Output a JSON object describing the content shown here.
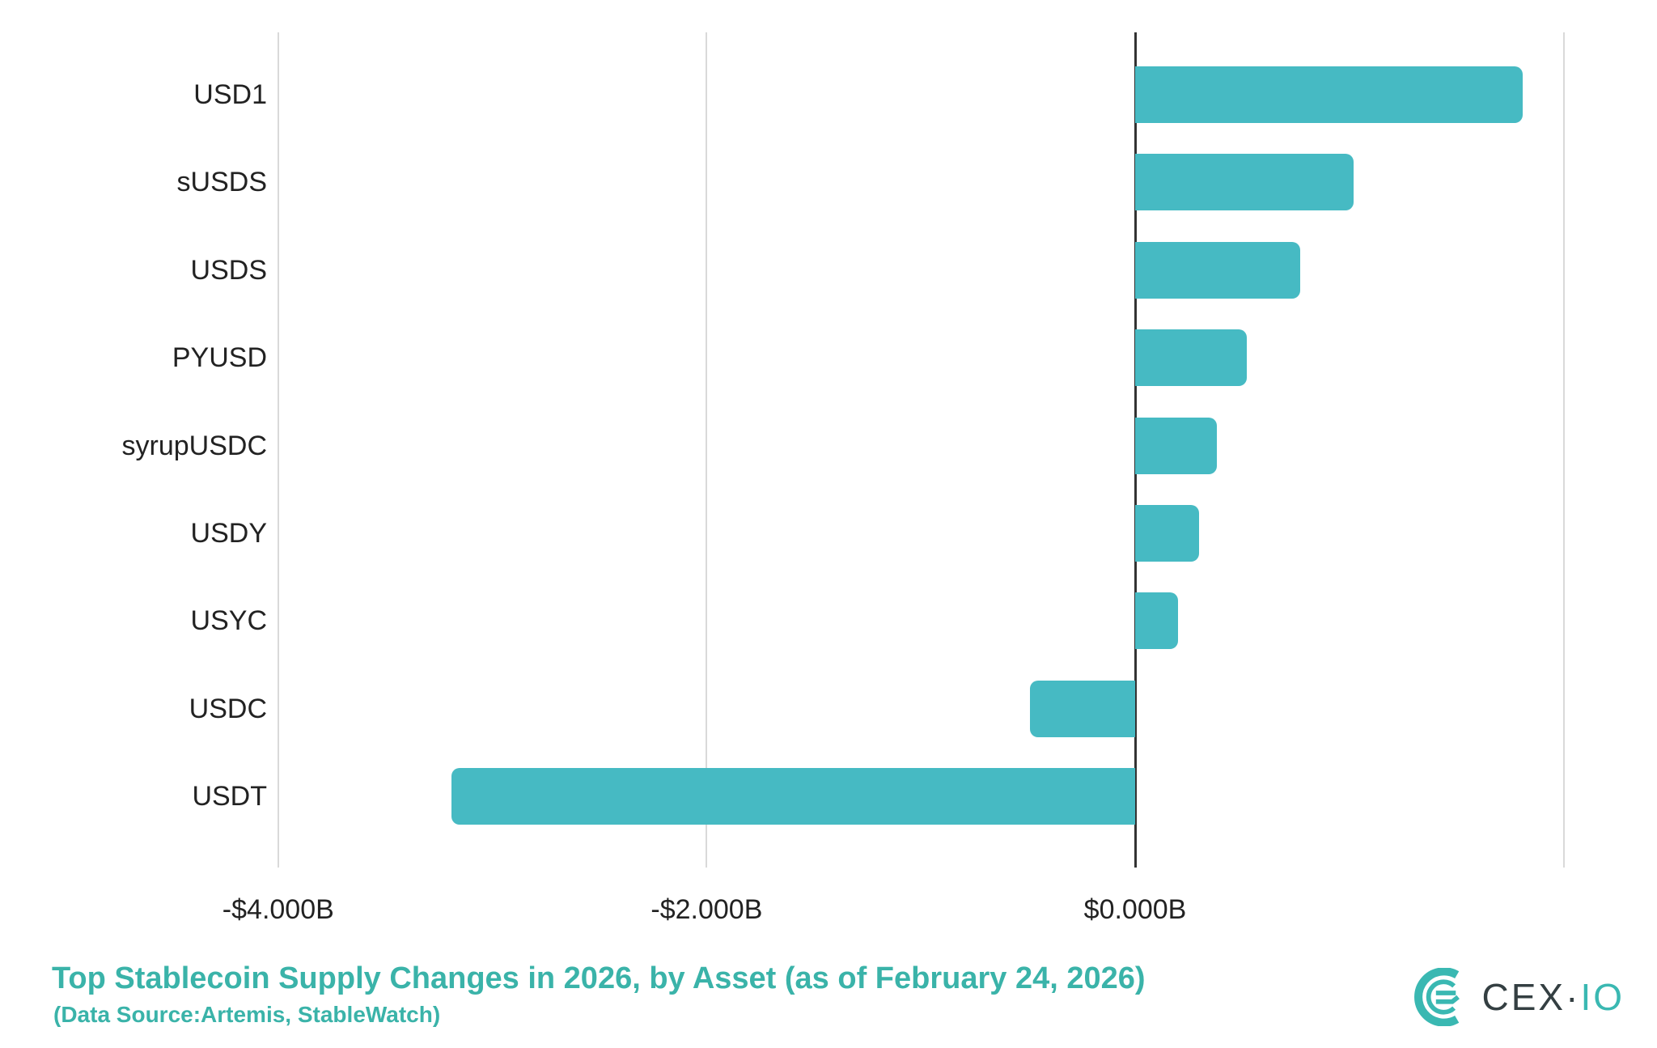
{
  "chart_data": {
    "type": "bar",
    "orientation": "horizontal",
    "title": "Top Stablecoin Supply Changes in 2026, by Asset (as of February 24, 2026)",
    "subtitle": "(Data Source:Artemis, StableWatch)",
    "unit": "USD billions",
    "categories": [
      "USD1",
      "sUSDS",
      "USDS",
      "PYUSD",
      "syrupUSDC",
      "USDY",
      "USYC",
      "USDC",
      "USDT"
    ],
    "values": [
      1.81,
      1.02,
      0.77,
      0.52,
      0.38,
      0.3,
      0.2,
      -0.49,
      -3.19
    ],
    "x_ticks": [
      {
        "value": -4,
        "label": "-$4.000B"
      },
      {
        "value": -2,
        "label": "-$2.000B"
      },
      {
        "value": 0,
        "label": "$0.000B"
      },
      {
        "value": 2,
        "label": ""
      }
    ],
    "xlim": [
      -4.3,
      2.4
    ],
    "grid": true,
    "legend": "none",
    "bar_color": "#46bac3",
    "grid_color": "#d9d9d9",
    "zero_line_color": "#333333",
    "label_color": "#222222"
  },
  "footer": {
    "accent_color": "#3ab3a9"
  },
  "logo": {
    "name": "CEX.IO",
    "text_primary": "CEX·",
    "text_secondary": "IO",
    "primary_color": "#343f42",
    "secondary_color": "#3ab8b2"
  }
}
